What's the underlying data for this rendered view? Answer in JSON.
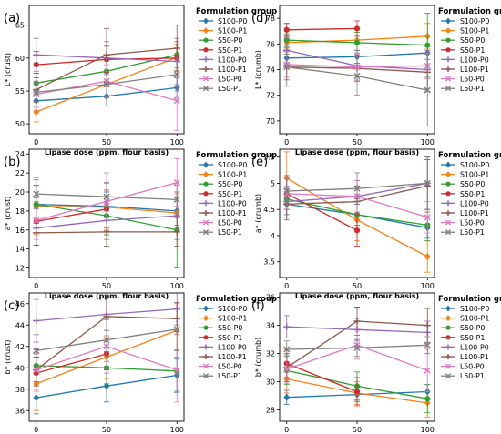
{
  "figure": {
    "groups_title": "Formulation group",
    "xlabel": "Lipase dose (ppm, flour basis)"
  },
  "series_styles": [
    {
      "name": "S100-P0",
      "color": "#1f77b4",
      "marker": "diamond"
    },
    {
      "name": "S100-P1",
      "color": "#ff7f0e",
      "marker": "diamond"
    },
    {
      "name": "S50-P0",
      "color": "#2ca02c",
      "marker": "circle"
    },
    {
      "name": "S50-P1",
      "color": "#d62728",
      "marker": "circle"
    },
    {
      "name": "L100-P0",
      "color": "#9467bd",
      "marker": "plus"
    },
    {
      "name": "L100-P1",
      "color": "#8c564b",
      "marker": "plus"
    },
    {
      "name": "L50-P0",
      "color": "#e377c2",
      "marker": "x"
    },
    {
      "name": "L50-P1",
      "color": "#7f7f7f",
      "marker": "x"
    }
  ],
  "chart_data": [
    {
      "panel_label": "(a)",
      "type": "line",
      "ylabel": "L* (crust)",
      "x": [
        0,
        50,
        100
      ],
      "xticks": [
        0,
        50,
        100
      ],
      "xlim": [
        -5,
        105
      ],
      "ylim": [
        48.5,
        68
      ],
      "yticks": [
        50,
        55,
        60,
        65
      ],
      "legend": "outside right",
      "grid": false,
      "series": [
        {
          "name": "S100-P0",
          "values": [
            53.5,
            54.2,
            55.5
          ],
          "err": [
            1.5,
            1.5,
            1.5
          ]
        },
        {
          "name": "S100-P1",
          "values": [
            51.8,
            56.0,
            60.1
          ],
          "err": [
            1.5,
            2.0,
            2.0
          ]
        },
        {
          "name": "S50-P0",
          "values": [
            56.2,
            58.0,
            60.5
          ],
          "err": [
            1.5,
            2.0,
            2.0
          ]
        },
        {
          "name": "S50-P1",
          "values": [
            59.0,
            59.8,
            60.0
          ],
          "err": [
            2.0,
            2.0,
            2.0
          ]
        },
        {
          "name": "L100-P0",
          "values": [
            60.5,
            60.0,
            59.5
          ],
          "err": [
            2.5,
            2.5,
            3.5
          ]
        },
        {
          "name": "L100-P1",
          "values": [
            55.2,
            60.5,
            61.5
          ],
          "err": [
            2.5,
            4.0,
            3.5
          ]
        },
        {
          "name": "L50-P0",
          "values": [
            54.5,
            56.5,
            53.5
          ],
          "err": [
            2.0,
            2.5,
            4.5
          ]
        },
        {
          "name": "L50-P1",
          "values": [
            54.8,
            56.0,
            57.5
          ],
          "err": [
            1.5,
            2.0,
            2.5
          ]
        }
      ]
    },
    {
      "panel_label": "(d)",
      "type": "line",
      "ylabel": "L* (crumb)",
      "x": [
        0,
        50,
        100
      ],
      "xticks": [
        0,
        50,
        100
      ],
      "xlim": [
        -5,
        105
      ],
      "ylim": [
        69,
        79
      ],
      "yticks": [
        70,
        72,
        74,
        76,
        78
      ],
      "legend": "outside right",
      "grid": false,
      "series": [
        {
          "name": "S100-P0",
          "values": [
            74.9,
            75.0,
            75.3
          ],
          "err": [
            0.5,
            0.5,
            0.5
          ]
        },
        {
          "name": "S100-P1",
          "values": [
            76.1,
            76.3,
            76.6
          ],
          "err": [
            0.5,
            0.8,
            1.0
          ]
        },
        {
          "name": "S50-P0",
          "values": [
            76.3,
            76.1,
            75.9
          ],
          "err": [
            0.5,
            0.8,
            2.5
          ]
        },
        {
          "name": "S50-P1",
          "values": [
            77.1,
            77.2
          ],
          "x": [
            0,
            50
          ],
          "err": [
            0.5,
            0.6
          ]
        },
        {
          "name": "L100-P0",
          "values": [
            75.5,
            74.3,
            74.0
          ],
          "err": [
            1.0,
            1.2,
            1.5
          ]
        },
        {
          "name": "L100-P1",
          "values": [
            74.2,
            74.1,
            73.8
          ],
          "err": [
            1.0,
            1.0,
            1.5
          ]
        },
        {
          "name": "L50-P0",
          "values": [
            74.4,
            74.2,
            74.3
          ],
          "err": [
            1.0,
            1.0,
            1.0
          ]
        },
        {
          "name": "L50-P1",
          "values": [
            74.2,
            73.5,
            72.4
          ],
          "err": [
            1.5,
            1.5,
            2.8
          ]
        }
      ]
    },
    {
      "panel_label": "(b)",
      "type": "line",
      "ylabel": "a* (crust)",
      "x": [
        0,
        50,
        100
      ],
      "xticks": [
        0,
        50,
        100
      ],
      "xlim": [
        -5,
        105
      ],
      "ylim": [
        11,
        24.5
      ],
      "yticks": [
        12,
        14,
        16,
        18,
        20,
        22,
        24
      ],
      "legend": "outside right",
      "grid": false,
      "series": [
        {
          "name": "S100-P0",
          "values": [
            18.7,
            18.5,
            18.0
          ],
          "err": [
            2.0,
            1.5,
            1.5
          ]
        },
        {
          "name": "S100-P1",
          "values": [
            18.5,
            18.4,
            17.8
          ],
          "err": [
            3.0,
            2.5,
            2.0
          ]
        },
        {
          "name": "S50-P0",
          "values": [
            18.7,
            17.5,
            16.0
          ],
          "err": [
            2.0,
            2.0,
            4.0
          ]
        },
        {
          "name": "S50-P1",
          "values": [
            16.9,
            18.2
          ],
          "x": [
            0,
            50
          ],
          "err": [
            2.5,
            2.0
          ]
        },
        {
          "name": "L100-P0",
          "values": [
            16.2,
            17.0,
            17.5
          ],
          "err": [
            2.0,
            2.0,
            2.5
          ]
        },
        {
          "name": "L100-P1",
          "values": [
            15.7,
            15.8,
            15.8
          ],
          "err": [
            1.5,
            1.5,
            1.5
          ]
        },
        {
          "name": "L50-P0",
          "values": [
            17.0,
            19.0,
            21.0
          ],
          "err": [
            2.0,
            3.0,
            2.5
          ]
        },
        {
          "name": "L50-P1",
          "values": [
            19.8,
            19.5,
            19.2
          ],
          "err": [
            1.5,
            1.5,
            1.5
          ]
        }
      ]
    },
    {
      "panel_label": "(e)",
      "type": "line",
      "ylabel": "a* (crumb)",
      "x": [
        0,
        50,
        100
      ],
      "xticks": [
        0,
        50,
        100
      ],
      "xlim": [
        -5,
        105
      ],
      "ylim": [
        3.2,
        5.65
      ],
      "yticks": [
        3.5,
        4.0,
        4.5,
        5.0,
        5.5
      ],
      "legend": "outside right",
      "grid": false,
      "series": [
        {
          "name": "S100-P0",
          "values": [
            4.6,
            4.4,
            4.15
          ],
          "err": [
            0.2,
            0.2,
            0.2
          ]
        },
        {
          "name": "S100-P1",
          "values": [
            5.1,
            4.3,
            3.6
          ],
          "err": [
            0.5,
            0.4,
            0.3
          ]
        },
        {
          "name": "S50-P0",
          "values": [
            4.7,
            4.4,
            4.2
          ],
          "err": [
            0.2,
            0.3,
            0.3
          ]
        },
        {
          "name": "S50-P1",
          "values": [
            4.8,
            4.1
          ],
          "x": [
            0,
            50
          ],
          "err": [
            0.3,
            0.3
          ]
        },
        {
          "name": "L100-P0",
          "values": [
            4.65,
            4.75,
            5.0
          ],
          "err": [
            0.3,
            0.3,
            0.5
          ]
        },
        {
          "name": "L100-P1",
          "values": [
            4.6,
            4.65,
            4.95
          ],
          "err": [
            0.3,
            0.3,
            0.5
          ]
        },
        {
          "name": "L50-P0",
          "values": [
            4.8,
            4.75,
            4.35
          ],
          "err": [
            0.3,
            0.3,
            0.3
          ]
        },
        {
          "name": "L50-P1",
          "values": [
            4.85,
            4.9,
            5.0
          ],
          "err": [
            0.3,
            0.3,
            0.5
          ]
        }
      ]
    },
    {
      "panel_label": "(c)",
      "type": "line",
      "ylabel": "b* (crust)",
      "x": [
        0,
        50,
        100
      ],
      "xticks": [
        0,
        50,
        100
      ],
      "xlim": [
        -5,
        105
      ],
      "ylim": [
        35,
        47
      ],
      "yticks": [
        36,
        38,
        40,
        42,
        44,
        46
      ],
      "legend": "outside right",
      "grid": false,
      "series": [
        {
          "name": "S100-P0",
          "values": [
            37.2,
            38.3,
            39.3
          ],
          "err": [
            1.5,
            1.5,
            1.5
          ]
        },
        {
          "name": "S100-P1",
          "values": [
            38.5,
            41.0,
            43.5
          ],
          "err": [
            2.5,
            2.0,
            2.5
          ]
        },
        {
          "name": "S50-P0",
          "values": [
            40.2,
            40.0,
            39.7
          ],
          "err": [
            1.5,
            1.5,
            2.0
          ]
        },
        {
          "name": "S50-P1",
          "values": [
            39.5,
            41.3
          ],
          "x": [
            0,
            50
          ],
          "err": [
            1.5,
            1.5
          ]
        },
        {
          "name": "L100-P0",
          "values": [
            44.4,
            45.0,
            45.5
          ],
          "err": [
            2.0,
            1.5,
            1.5
          ]
        },
        {
          "name": "L100-P1",
          "values": [
            39.8,
            44.8,
            44.6
          ],
          "err": [
            1.5,
            2.0,
            1.5
          ]
        },
        {
          "name": "L50-P0",
          "values": [
            39.8,
            42.0,
            39.8
          ],
          "err": [
            2.0,
            2.5,
            3.0
          ]
        },
        {
          "name": "L50-P1",
          "values": [
            41.6,
            42.6,
            43.6
          ],
          "err": [
            1.5,
            2.0,
            2.0
          ]
        }
      ]
    },
    {
      "panel_label": "(f)",
      "type": "line",
      "ylabel": "b* (crumb)",
      "x": [
        0,
        50,
        100
      ],
      "xticks": [
        0,
        50,
        100
      ],
      "xlim": [
        -5,
        105
      ],
      "ylim": [
        27.2,
        36.3
      ],
      "yticks": [
        28,
        30,
        32,
        34,
        36
      ],
      "legend": "outside right",
      "grid": false,
      "series": [
        {
          "name": "S100-P0",
          "values": [
            28.9,
            29.1,
            29.3
          ],
          "err": [
            0.5,
            0.5,
            0.5
          ]
        },
        {
          "name": "S100-P1",
          "values": [
            30.2,
            29.2,
            28.5
          ],
          "err": [
            1.0,
            0.8,
            1.0
          ]
        },
        {
          "name": "S50-P0",
          "values": [
            30.8,
            29.7,
            28.8
          ],
          "err": [
            1.0,
            1.0,
            1.0
          ]
        },
        {
          "name": "S50-P1",
          "values": [
            31.3,
            29.3
          ],
          "x": [
            0,
            50
          ],
          "err": [
            1.0,
            1.0
          ]
        },
        {
          "name": "L100-P0",
          "values": [
            33.9,
            33.7,
            33.5
          ],
          "err": [
            0.8,
            0.8,
            0.8
          ]
        },
        {
          "name": "L100-P1",
          "values": [
            31.0,
            34.3,
            34.0
          ],
          "err": [
            1.0,
            1.0,
            1.2
          ]
        },
        {
          "name": "L50-P0",
          "values": [
            30.9,
            32.6,
            30.8
          ],
          "err": [
            1.0,
            1.0,
            1.5
          ]
        },
        {
          "name": "L50-P1",
          "values": [
            32.3,
            32.4,
            32.6
          ],
          "err": [
            0.6,
            0.6,
            0.6
          ]
        }
      ]
    }
  ]
}
